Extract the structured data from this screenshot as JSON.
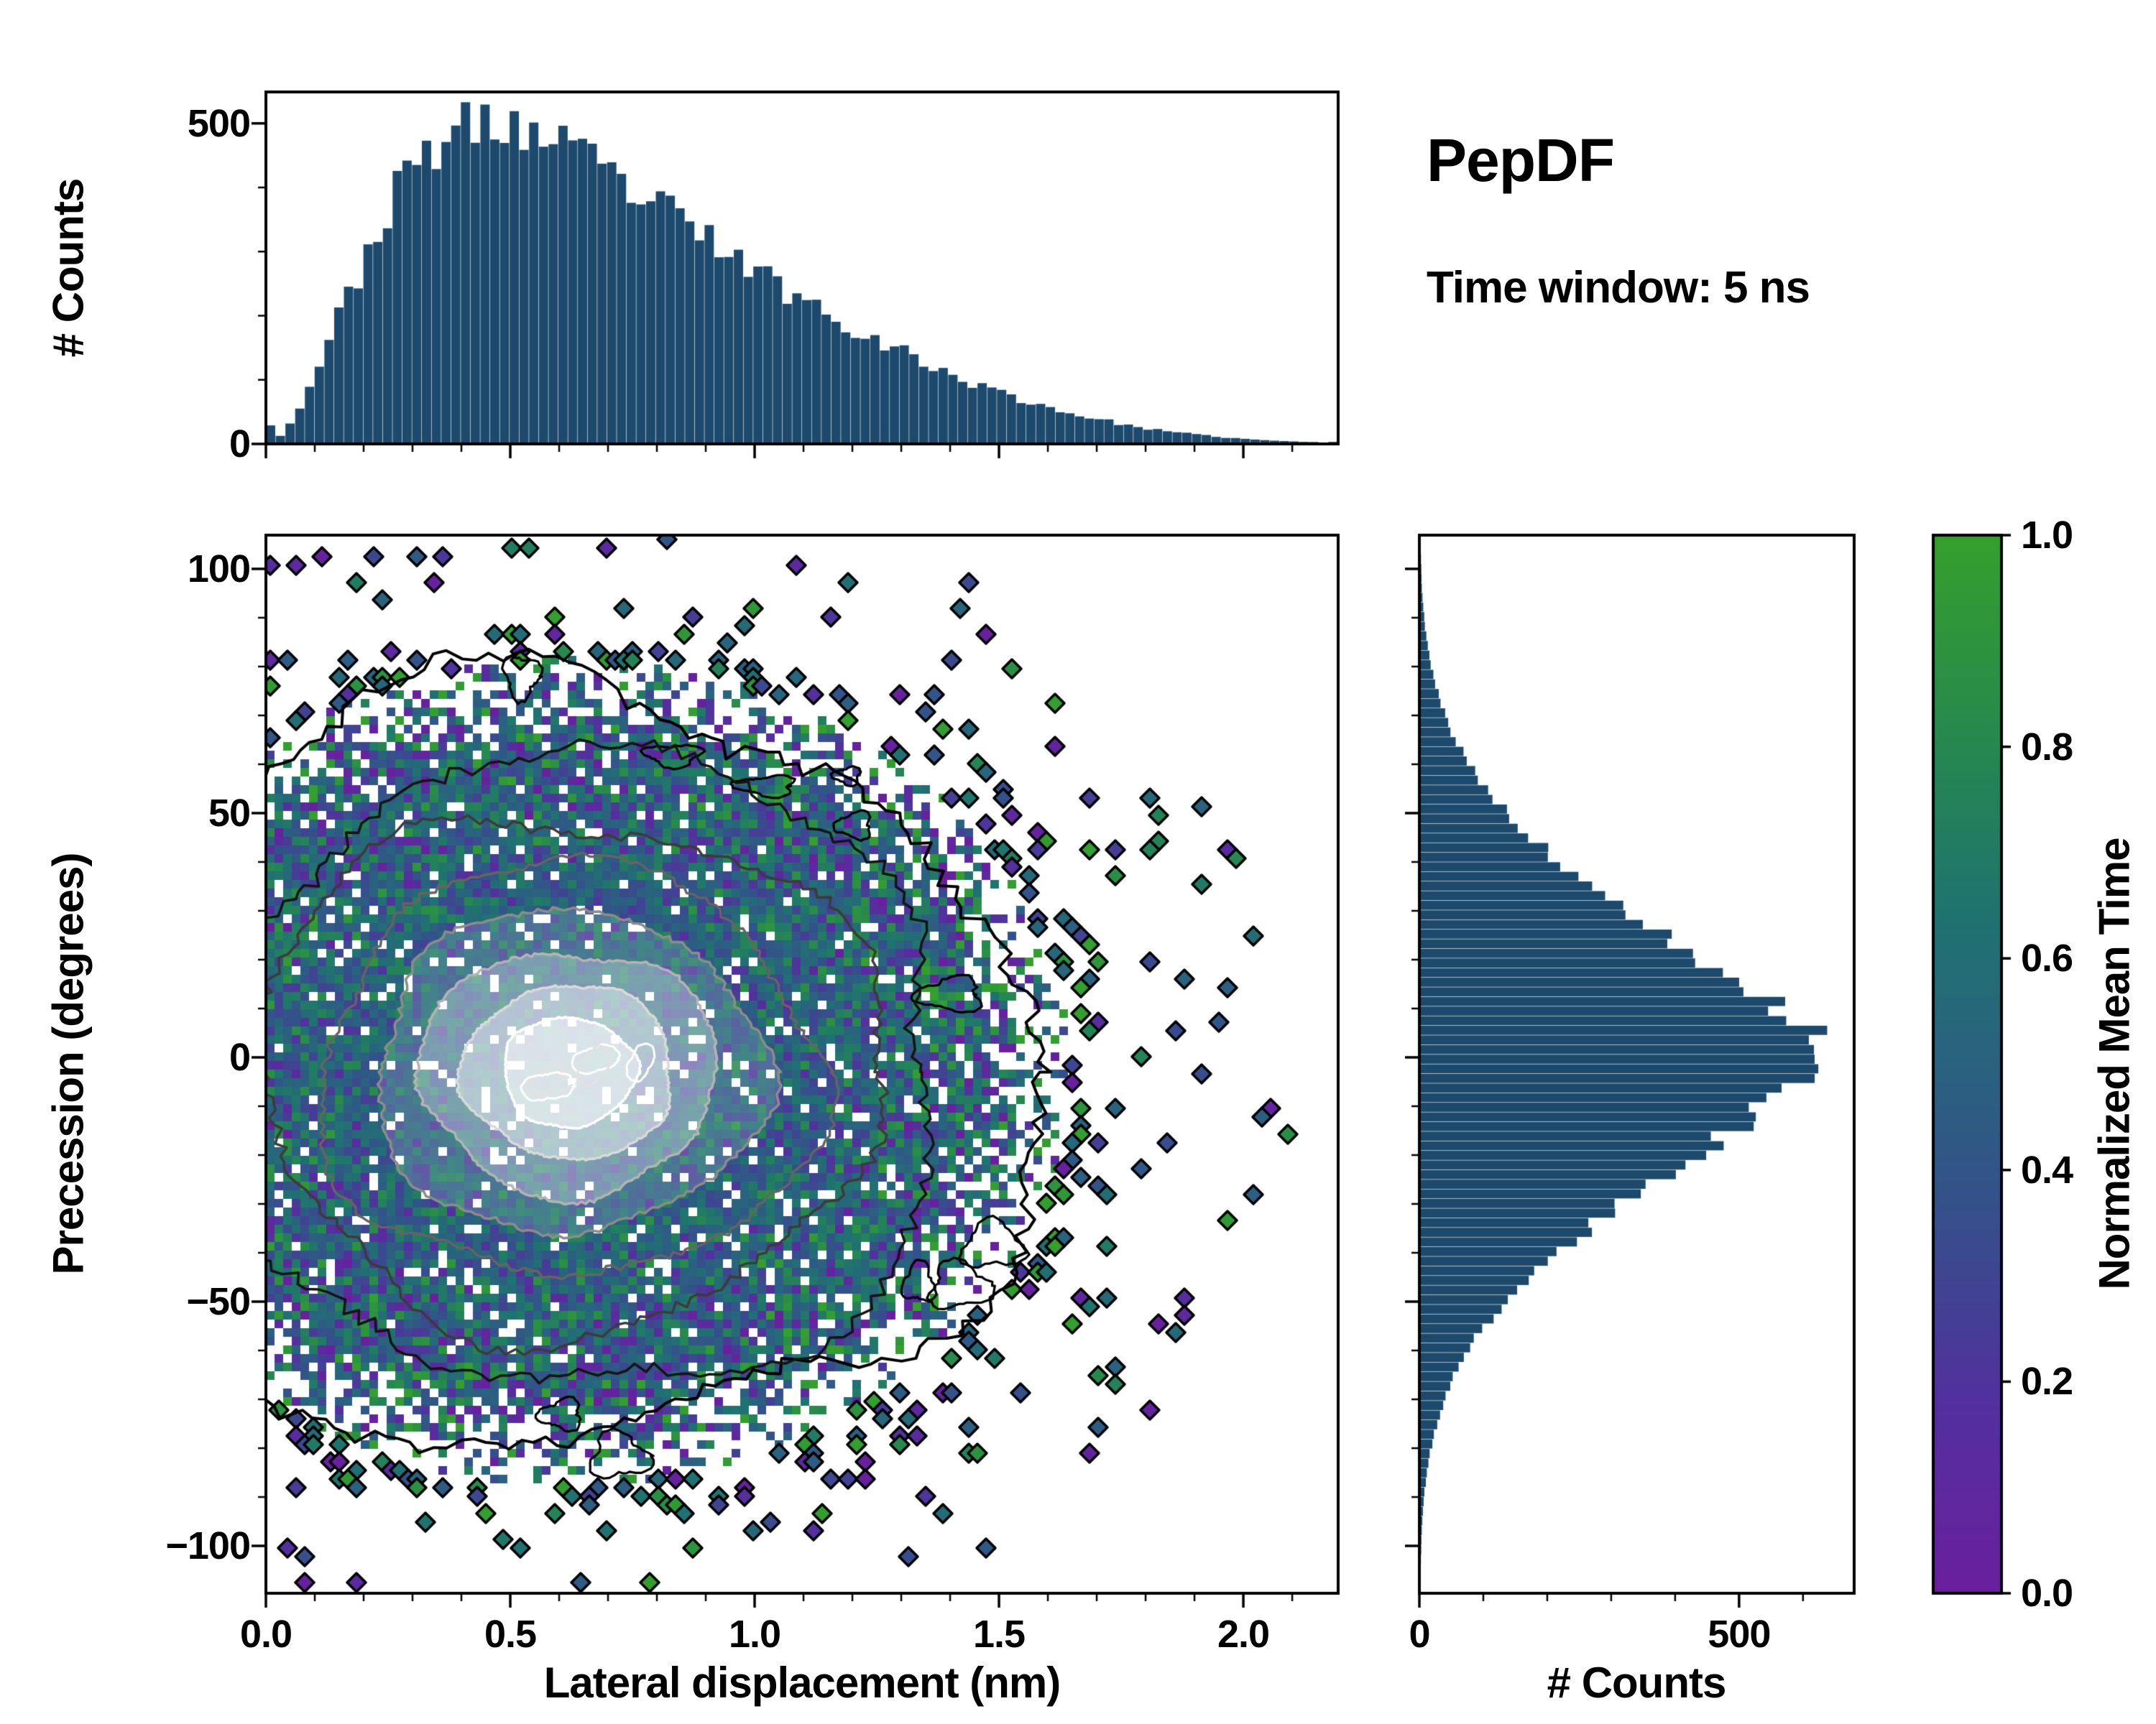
{
  "seed": 12,
  "annotations": {
    "title": "PepDF",
    "subtitle": "Time window: 5 ns"
  },
  "style": {
    "background": "#ffffff",
    "axis_color": "#000000",
    "bar_color": "#1d4a6c"
  },
  "chart_data": [
    {
      "id": "top_histogram",
      "type": "bar",
      "orientation": "vertical",
      "title": "",
      "xlabel": "Lateral displacement (nm)",
      "ylabel": "# Counts",
      "xlim": [
        0,
        2.194
      ],
      "ylim": [
        0,
        549
      ],
      "ytick_values": [
        0,
        500
      ],
      "ytick_labels": [
        "0",
        "500"
      ],
      "bin_start": 0.0,
      "bin_width": 0.04,
      "bar_color": "#1d4a6c",
      "grid": false,
      "values": [
        5,
        40,
        110,
        180,
        250,
        318,
        380,
        430,
        462,
        480,
        494,
        500,
        496,
        486,
        470,
        455,
        440,
        420,
        400,
        381,
        362,
        342,
        322,
        301,
        281,
        262,
        243,
        226,
        210,
        192,
        176,
        160,
        145,
        130,
        116,
        102,
        91,
        81,
        71,
        62,
        53,
        46,
        39,
        33,
        27,
        22,
        18,
        15,
        12,
        9,
        7,
        5,
        4,
        3,
        2
      ]
    },
    {
      "id": "joint_heatmap",
      "type": "heatmap",
      "title": "",
      "xlabel": "Lateral displacement (nm)",
      "ylabel": "Precession (degrees)",
      "color_meaning": "Normalized Mean Time",
      "xlim": [
        0,
        2.194
      ],
      "ylim": [
        -109.7,
        106.9
      ],
      "xticks": [
        0.0,
        0.5,
        1.0,
        1.5,
        2.0
      ],
      "xtick_labels": [
        "0.0",
        "0.5",
        "1.0",
        "1.5",
        "2.0"
      ],
      "yticks": [
        -100,
        -50,
        0,
        50,
        100
      ],
      "ytick_labels": [
        "−100",
        "−50",
        "0",
        "50",
        "100"
      ],
      "grid": false,
      "distribution": {
        "center_x": 0.62,
        "center_y": -3,
        "rx": 0.8,
        "ry": 66
      },
      "value_profile": {
        "core_mean": 0.5,
        "core_spread": 0.13,
        "edge_spread_slope": 0.5
      },
      "contour_colors": [
        "#000000",
        "#141414",
        "#3b3b3b",
        "#646464",
        "#8c8c8c",
        "#b4b4b4",
        "#dadada",
        "#ffffff"
      ]
    },
    {
      "id": "right_histogram",
      "type": "bar",
      "orientation": "horizontal",
      "title": "",
      "xlabel": "# Counts",
      "ylabel": "",
      "xlim": [
        0,
        680
      ],
      "ylim": [
        -109.7,
        106.9
      ],
      "xtick_values": [
        0,
        500
      ],
      "xtick_labels": [
        "0",
        "500"
      ],
      "bin_start": -110,
      "bin_width": 4,
      "bar_color": "#1d4a6c",
      "grid": false,
      "values": [
        1,
        2,
        3,
        4,
        6,
        9,
        13,
        18,
        25,
        34,
        45,
        59,
        76,
        97,
        121,
        149,
        181,
        217,
        256,
        298,
        342,
        388,
        434,
        479,
        522,
        565,
        610,
        640,
        628,
        590,
        540,
        488,
        440,
        392,
        346,
        301,
        258,
        219,
        183,
        150,
        122,
        98,
        77,
        60,
        46,
        35,
        26,
        19,
        13,
        9,
        6,
        4,
        3,
        2,
        1
      ]
    },
    {
      "id": "colorbar",
      "type": "colorbar",
      "label": "Normalized Mean Time",
      "range": [
        0.0,
        1.0
      ],
      "tick_values": [
        0.0,
        0.2,
        0.4,
        0.6,
        0.8,
        1.0
      ],
      "tick_labels": [
        "0.0",
        "0.2",
        "0.4",
        "0.6",
        "0.8",
        "1.0"
      ],
      "stops": [
        {
          "t": 0.0,
          "color": "#6a1f9e"
        },
        {
          "t": 0.18,
          "color": "#53309e"
        },
        {
          "t": 0.36,
          "color": "#35508b"
        },
        {
          "t": 0.5,
          "color": "#2a627f"
        },
        {
          "t": 0.64,
          "color": "#1f7370"
        },
        {
          "t": 0.8,
          "color": "#268850"
        },
        {
          "t": 1.0,
          "color": "#35a02c"
        }
      ]
    }
  ]
}
